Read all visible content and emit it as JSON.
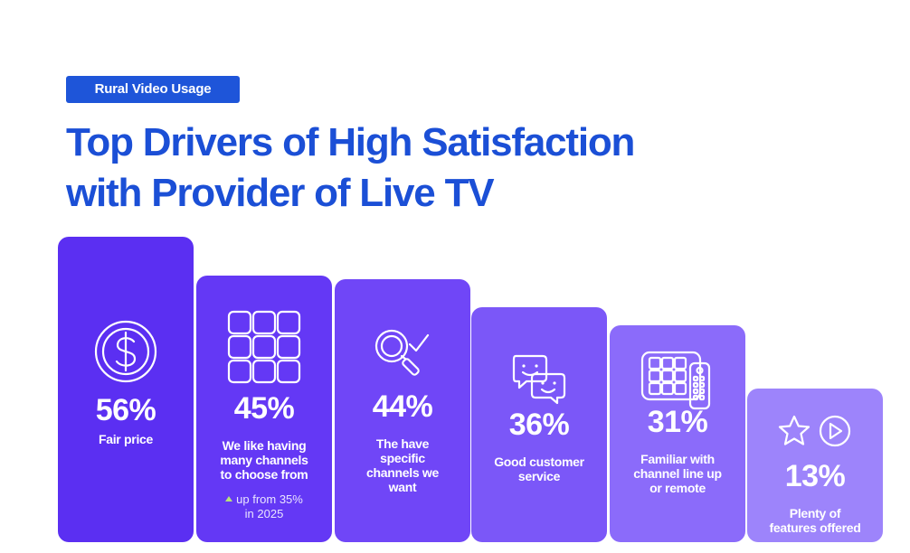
{
  "header": {
    "tag": "Rural Video Usage",
    "title_line1": "Top Drivers of High Satisfaction",
    "title_line2": "with Provider of Live TV"
  },
  "colors": {
    "accent_blue": "#1e55d9",
    "bars": [
      "#5b2ff2",
      "#6438f5",
      "#7046f7",
      "#7b57f8",
      "#8b6bfa",
      "#9d84fb"
    ]
  },
  "icons": [
    "dollar-circle-icon",
    "channel-grid-icon",
    "search-check-icon",
    "chat-bubbles-icon",
    "remote-grid-icon",
    "star-play-icon"
  ],
  "chart_data": {
    "type": "bar",
    "title": "Top Drivers of High Satisfaction with Provider of Live TV",
    "subtitle": "Rural Video Usage",
    "categories": [
      "Fair price",
      "We like having many channels to choose from",
      "The have specific channels we want",
      "Good customer service",
      "Familiar with channel line up or remote",
      "Plenty of features offered"
    ],
    "values": [
      56,
      45,
      44,
      36,
      31,
      13
    ],
    "value_labels": [
      "56%",
      "45%",
      "44%",
      "36%",
      "31%",
      "13%"
    ],
    "label_lines": [
      [
        "Fair price"
      ],
      [
        "We like having",
        "many channels",
        "to choose from"
      ],
      [
        "The have",
        "specific",
        "channels we",
        "want"
      ],
      [
        "Good customer",
        "service"
      ],
      [
        "Familiar with",
        "channel line up",
        "or remote"
      ],
      [
        "Plenty of",
        "features offered"
      ]
    ],
    "annotation": {
      "category_index": 1,
      "line1": "up from 35%",
      "line2": "in 2025"
    },
    "ylim": [
      0,
      56
    ],
    "xlabel": "",
    "ylabel": ""
  }
}
